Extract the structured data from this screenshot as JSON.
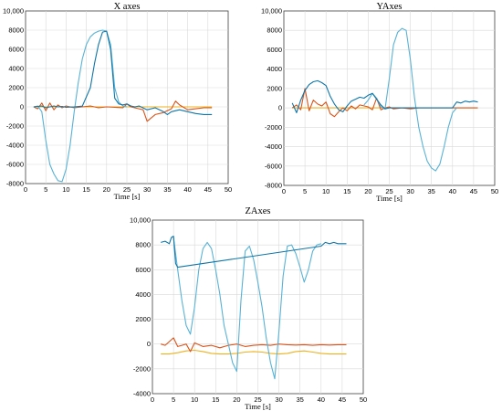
{
  "chart_data": [
    {
      "type": "line",
      "title": "X axes",
      "xlabel": "Time [s]",
      "xlim": [
        0,
        50
      ],
      "ylim": [
        -8000,
        10000
      ],
      "xticks": [
        "0",
        "5",
        "10",
        "15",
        "20",
        "25",
        "30",
        "35",
        "40",
        "45",
        "50"
      ],
      "yticks": [
        "-8000",
        "-6000",
        "-4000",
        "-2000",
        "0",
        "2000",
        "4000",
        "6000",
        "8000",
        "10,000"
      ],
      "grid": true,
      "colors": {
        "blue": "#0e76a8",
        "cyan": "#58b3d6",
        "orange": "#d95319",
        "yellow": "#edb120"
      },
      "series": [
        {
          "color_key": "blue",
          "x": [
            2,
            4,
            5,
            6,
            7,
            8,
            9,
            10,
            12,
            14,
            16,
            17,
            18,
            19,
            20,
            21,
            22,
            23,
            24,
            25,
            26,
            27,
            28,
            30,
            32,
            34,
            35,
            36,
            38,
            40,
            42,
            44,
            46
          ],
          "y": [
            0,
            100,
            -100,
            0,
            100,
            0,
            50,
            -50,
            0,
            80,
            2000,
            4500,
            6500,
            7800,
            7900,
            6000,
            900,
            300,
            200,
            300,
            100,
            0,
            100,
            -300,
            -100,
            -500,
            -800,
            -500,
            -300,
            -500,
            -700,
            -800,
            -800
          ]
        },
        {
          "color_key": "cyan",
          "x": [
            2,
            3,
            4,
            5,
            6,
            7,
            8,
            9,
            10,
            11,
            12,
            13,
            14,
            15,
            16,
            17,
            18,
            19,
            20,
            21,
            22,
            23,
            24,
            25
          ],
          "y": [
            0,
            100,
            -500,
            -3500,
            -6000,
            -7000,
            -7700,
            -7800,
            -6500,
            -4000,
            -500,
            2500,
            5000,
            6500,
            7300,
            7700,
            7900,
            8000,
            7900,
            6500,
            2000,
            500,
            100,
            0
          ]
        },
        {
          "color_key": "orange",
          "x": [
            2,
            3,
            4,
            5,
            6,
            7,
            8,
            9,
            10,
            12,
            14,
            16,
            18,
            20,
            22,
            24,
            25,
            26,
            28,
            29,
            30,
            32,
            34,
            36,
            37,
            38,
            40,
            42,
            44,
            46
          ],
          "y": [
            0,
            -200,
            400,
            -400,
            400,
            -300,
            200,
            -100,
            100,
            -100,
            0,
            100,
            -100,
            0,
            -50,
            -100,
            300,
            0,
            -200,
            -300,
            -1500,
            -800,
            -600,
            -200,
            600,
            200,
            -300,
            -200,
            -100,
            -100
          ]
        },
        {
          "color_key": "yellow",
          "x": [
            2,
            10,
            20,
            30,
            40,
            46
          ],
          "y": [
            0,
            0,
            0,
            0,
            0,
            0
          ]
        }
      ]
    },
    {
      "type": "line",
      "title": "YAxes",
      "xlabel": "Time [s]",
      "xlim": [
        0,
        50
      ],
      "ylim": [
        -8000,
        10000
      ],
      "xticks": [
        "0",
        "5",
        "10",
        "15",
        "20",
        "25",
        "30",
        "35",
        "40",
        "45",
        "50"
      ],
      "yticks": [
        "-8000",
        "-6000",
        "-4000",
        "-2000",
        "0",
        "2000",
        "4000",
        "6000",
        "8000",
        "10,000"
      ],
      "grid": true,
      "series": [
        {
          "color_key": "blue",
          "x": [
            2,
            3,
            4,
            5,
            6,
            7,
            8,
            9,
            10,
            11,
            12,
            13,
            14,
            15,
            16,
            17,
            18,
            19,
            20,
            21,
            22,
            23,
            24,
            25,
            40,
            41,
            42,
            43,
            44,
            45,
            46
          ],
          "y": [
            500,
            -500,
            800,
            1800,
            2400,
            2700,
            2800,
            2600,
            2300,
            1200,
            400,
            -200,
            -400,
            200,
            700,
            900,
            1100,
            1000,
            1300,
            1500,
            900,
            300,
            -100,
            0,
            0,
            600,
            500,
            700,
            600,
            700,
            600
          ]
        },
        {
          "color_key": "cyan",
          "x": [
            19,
            20,
            21,
            22,
            23,
            24,
            25,
            26,
            27,
            28,
            29,
            30,
            31,
            32,
            33,
            34,
            35,
            36,
            37,
            38,
            39,
            40,
            41
          ],
          "y": [
            300,
            800,
            1500,
            1000,
            100,
            -100,
            3000,
            6500,
            7800,
            8200,
            8000,
            5000,
            1000,
            -2000,
            -4000,
            -5500,
            -6200,
            -6500,
            -5800,
            -4000,
            -2000,
            -500,
            0
          ]
        },
        {
          "color_key": "orange",
          "x": [
            2,
            3,
            4,
            5,
            6,
            7,
            8,
            9,
            10,
            11,
            12,
            13,
            14,
            15,
            16,
            17,
            18,
            20,
            21,
            22,
            23,
            24,
            25,
            26,
            28,
            30,
            32,
            34,
            36,
            38,
            40,
            42,
            44,
            46
          ],
          "y": [
            0,
            300,
            -200,
            2000,
            -300,
            800,
            400,
            200,
            600,
            -600,
            -900,
            -400,
            0,
            -300,
            200,
            -100,
            300,
            100,
            -200,
            1000,
            -200,
            0,
            100,
            -100,
            0,
            -100,
            0,
            0,
            0,
            0,
            0,
            0,
            0,
            0
          ]
        },
        {
          "color_key": "yellow",
          "x": [
            2,
            10,
            20,
            30,
            40,
            46
          ],
          "y": [
            0,
            0,
            0,
            0,
            0,
            0
          ]
        }
      ]
    },
    {
      "type": "line",
      "title": "ZAxes",
      "xlabel": "Time [s]",
      "xlim": [
        0,
        50
      ],
      "ylim": [
        -4000,
        10000
      ],
      "xticks": [
        "0",
        "5",
        "10",
        "15",
        "20",
        "25",
        "30",
        "35",
        "40",
        "45",
        "50"
      ],
      "yticks": [
        "-4000",
        "-2000",
        "0",
        "2000",
        "4000",
        "6000",
        "8000",
        "10,000"
      ],
      "grid": true,
      "series": [
        {
          "color_key": "blue",
          "x": [
            2,
            3,
            4,
            4.5,
            5,
            5.5,
            6,
            40,
            41,
            42,
            43,
            44,
            46
          ],
          "y": [
            8200,
            8300,
            8100,
            8600,
            8700,
            6500,
            6200,
            7900,
            8200,
            8100,
            8200,
            8100,
            8100
          ]
        },
        {
          "color_key": "cyan",
          "x": [
            5,
            6,
            7,
            8,
            9,
            10,
            11,
            12,
            13,
            14,
            15,
            16,
            17,
            18,
            19,
            20,
            21,
            22,
            23,
            24,
            25,
            26,
            27,
            28,
            29,
            30,
            31,
            32,
            33,
            34,
            35,
            36,
            37,
            38,
            39,
            40
          ],
          "y": [
            8600,
            6000,
            3500,
            1500,
            800,
            3000,
            6000,
            7700,
            8200,
            7700,
            6000,
            4000,
            1500,
            0,
            -1500,
            -2200,
            3500,
            7500,
            7900,
            6800,
            5000,
            3000,
            500,
            -1500,
            -2800,
            1000,
            5500,
            7900,
            8000,
            7300,
            6200,
            5000,
            6000,
            7500,
            8000,
            8100
          ]
        },
        {
          "color_key": "orange",
          "x": [
            2,
            3,
            4,
            5,
            6,
            7,
            8,
            9,
            10,
            12,
            14,
            16,
            18,
            20,
            22,
            24,
            26,
            28,
            30,
            32,
            34,
            36,
            38,
            40,
            42,
            44,
            46
          ],
          "y": [
            0,
            -100,
            200,
            500,
            -200,
            -100,
            0,
            -600,
            100,
            -200,
            -100,
            -300,
            -100,
            0,
            -200,
            -100,
            -50,
            -100,
            0,
            -50,
            -80,
            -50,
            -100,
            -50,
            -80,
            -50,
            -50
          ]
        },
        {
          "color_key": "yellow",
          "x": [
            2,
            4,
            6,
            8,
            10,
            12,
            14,
            16,
            18,
            20,
            22,
            24,
            26,
            28,
            30,
            32,
            34,
            36,
            38,
            40,
            42,
            44,
            46
          ],
          "y": [
            -800,
            -800,
            -700,
            -550,
            -500,
            -600,
            -750,
            -800,
            -800,
            -750,
            -650,
            -600,
            -650,
            -750,
            -800,
            -750,
            -600,
            -550,
            -650,
            -750,
            -800,
            -800,
            -800
          ]
        }
      ]
    }
  ]
}
